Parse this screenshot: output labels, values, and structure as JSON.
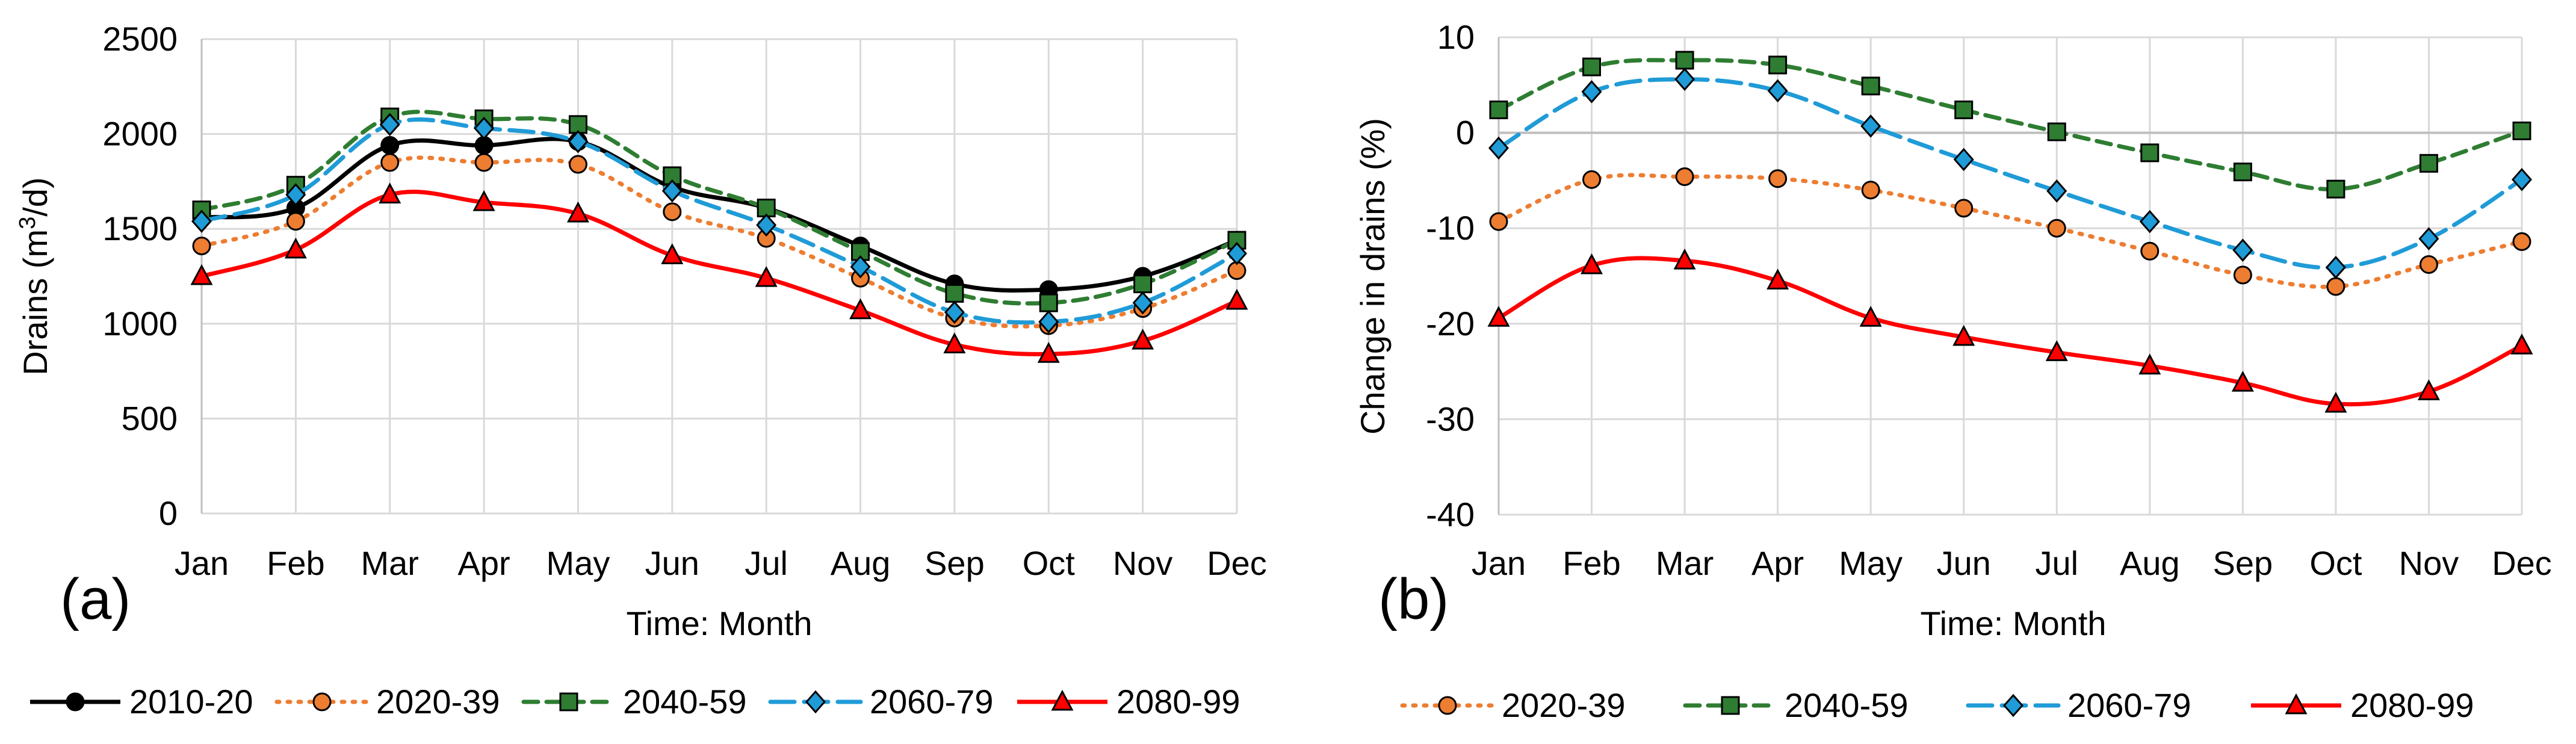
{
  "colors": {
    "2010-20": "#000000",
    "2020-39": "#ed7d31",
    "2040-59": "#2e7d32",
    "2060-79": "#1f9bd7",
    "2080-99": "#ff0000"
  },
  "chart_data": [
    {
      "type": "line",
      "panel_label": "(a)",
      "xlabel": "Time: Month",
      "ylabel_main": "Drains (m",
      "ylabel_sup": "3",
      "ylabel_tail": "/d)",
      "categories": [
        "Jan",
        "Feb",
        "Mar",
        "Apr",
        "May",
        "Jun",
        "Jul",
        "Aug",
        "Sep",
        "Oct",
        "Nov",
        "Dec"
      ],
      "ylim": [
        0,
        2500
      ],
      "yticks": [
        0,
        500,
        1000,
        1500,
        2000,
        2500
      ],
      "ytick_labels": [
        "0",
        "500",
        "1000",
        "1500",
        "2000",
        "2500"
      ],
      "grid": true,
      "series": [
        {
          "name": "2010-20",
          "values": [
            1560,
            1610,
            1940,
            1940,
            1960,
            1720,
            1610,
            1410,
            1210,
            1180,
            1250,
            1440
          ]
        },
        {
          "name": "2020-39",
          "values": [
            1410,
            1540,
            1850,
            1850,
            1840,
            1590,
            1450,
            1240,
            1030,
            990,
            1080,
            1280
          ]
        },
        {
          "name": "2040-59",
          "values": [
            1600,
            1730,
            2090,
            2080,
            2050,
            1780,
            1610,
            1380,
            1160,
            1110,
            1210,
            1440
          ]
        },
        {
          "name": "2060-79",
          "values": [
            1540,
            1680,
            2050,
            2030,
            1960,
            1700,
            1520,
            1300,
            1060,
            1010,
            1110,
            1370
          ]
        },
        {
          "name": "2080-99",
          "values": [
            1250,
            1390,
            1680,
            1640,
            1580,
            1360,
            1240,
            1070,
            890,
            840,
            910,
            1120
          ]
        }
      ]
    },
    {
      "type": "line",
      "panel_label": "(b)",
      "xlabel": "Time: Month",
      "ylabel": "Change in drains (%)",
      "categories": [
        "Jan",
        "Feb",
        "Mar",
        "Apr",
        "May",
        "Jun",
        "Jul",
        "Aug",
        "Sep",
        "Oct",
        "Nov",
        "Dec"
      ],
      "ylim": [
        -40,
        10
      ],
      "yticks": [
        -40,
        -30,
        -20,
        -10,
        0,
        10
      ],
      "ytick_labels": [
        "-40",
        "-30",
        "-20",
        "-10",
        "0",
        "10"
      ],
      "grid": true,
      "series": [
        {
          "name": "2020-39",
          "values": [
            -9.3,
            -4.9,
            -4.6,
            -4.8,
            -6.0,
            -7.9,
            -10.0,
            -12.4,
            -14.9,
            -16.1,
            -13.8,
            -11.4
          ]
        },
        {
          "name": "2040-59",
          "values": [
            2.4,
            6.9,
            7.6,
            7.1,
            4.9,
            2.4,
            0.1,
            -2.1,
            -4.1,
            -5.9,
            -3.2,
            0.2
          ]
        },
        {
          "name": "2060-79",
          "values": [
            -1.6,
            4.3,
            5.6,
            4.4,
            0.7,
            -2.8,
            -6.1,
            -9.3,
            -12.3,
            -14.1,
            -11.1,
            -4.9
          ]
        },
        {
          "name": "2080-99",
          "values": [
            -19.4,
            -13.9,
            -13.4,
            -15.5,
            -19.4,
            -21.4,
            -23.0,
            -24.4,
            -26.2,
            -28.4,
            -27.1,
            -22.3
          ]
        }
      ]
    }
  ],
  "legend_a": [
    "2010-20",
    "2020-39",
    "2040-59",
    "2060-79",
    "2080-99"
  ],
  "legend_b": [
    "2020-39",
    "2040-59",
    "2060-79",
    "2080-99"
  ]
}
